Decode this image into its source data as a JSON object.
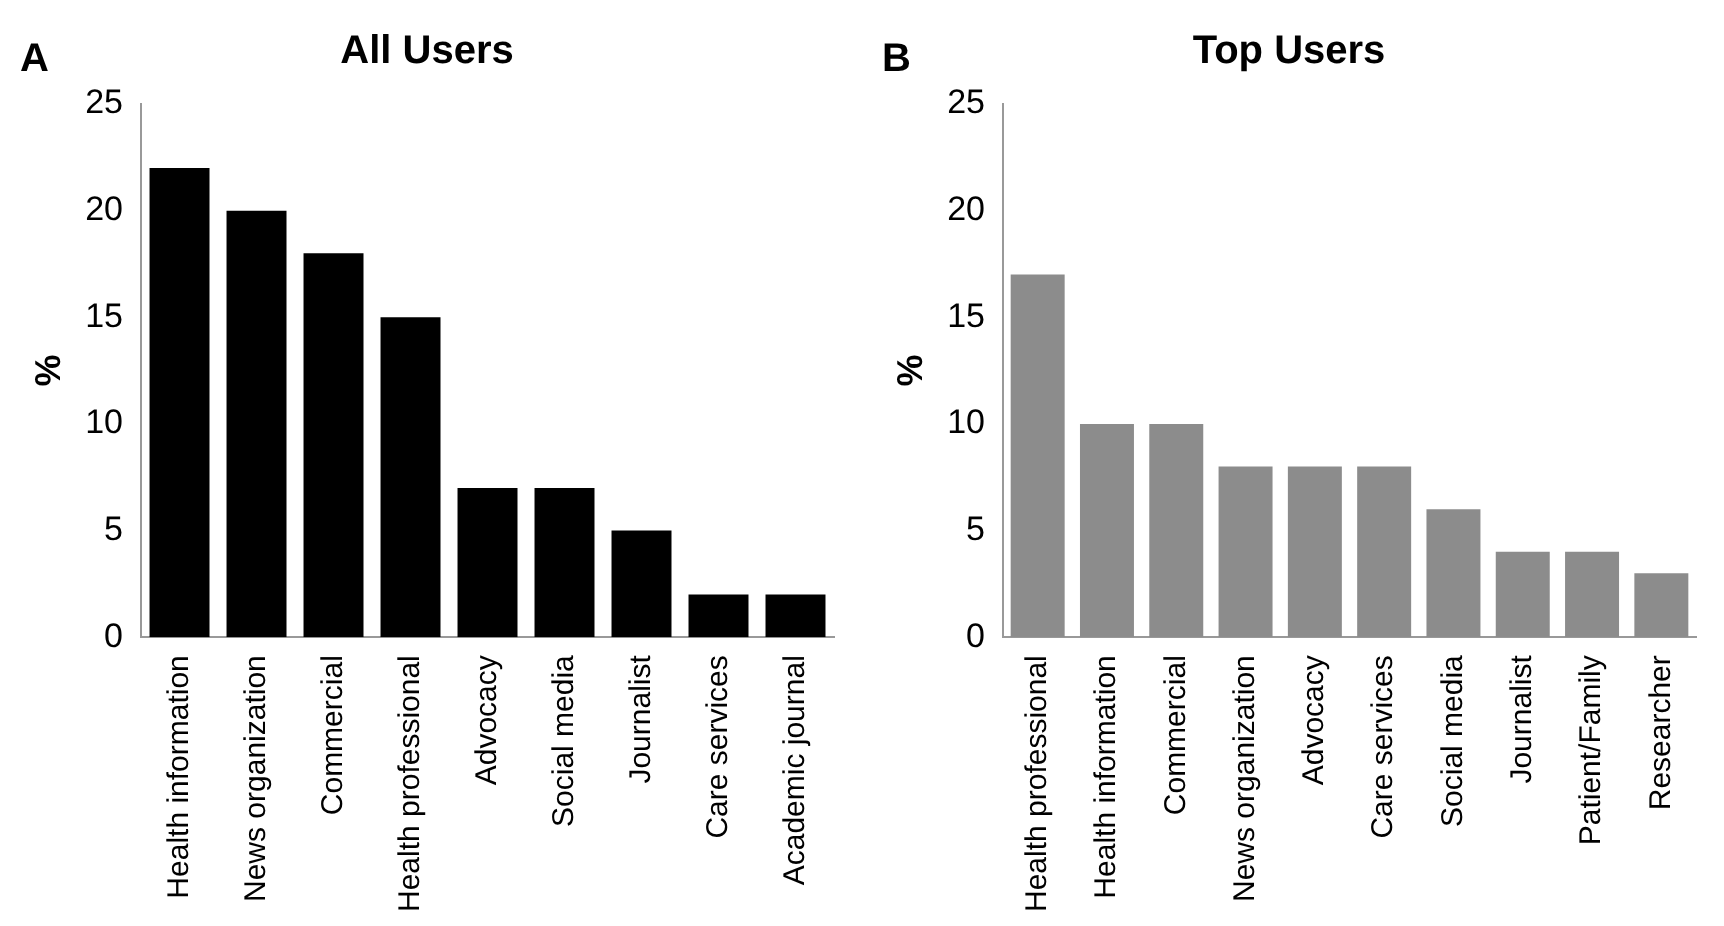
{
  "chart_data": [
    {
      "type": "bar",
      "title": "All Users",
      "ylabel": "%",
      "annotations": [
        "A"
      ],
      "categories": [
        "Health information",
        "News organization",
        "Commercial",
        "Health professional",
        "Advocacy",
        "Social media",
        "Journalist",
        "Care services",
        "Academic journal"
      ],
      "values": [
        22,
        20,
        18,
        15,
        7,
        7,
        5,
        2,
        2
      ],
      "color": "#000000",
      "ylim": [
        0,
        25
      ],
      "yticks": [
        0,
        5,
        10,
        15,
        20,
        25
      ],
      "grid": false,
      "legend": false
    },
    {
      "type": "bar",
      "title": "Top Users",
      "ylabel": "%",
      "annotations": [
        "B"
      ],
      "categories": [
        "Health professional",
        "Health information",
        "Commercial",
        "News organization",
        "Advocacy",
        "Care services",
        "Social media",
        "Journalist",
        "Patient/Family",
        "Researcher"
      ],
      "values": [
        17,
        10,
        10,
        8,
        8,
        8,
        6,
        4,
        4,
        3
      ],
      "color": "#8c8c8c",
      "ylim": [
        0,
        25
      ],
      "yticks": [
        0,
        5,
        10,
        15,
        20,
        25
      ],
      "grid": false,
      "legend": false
    }
  ]
}
